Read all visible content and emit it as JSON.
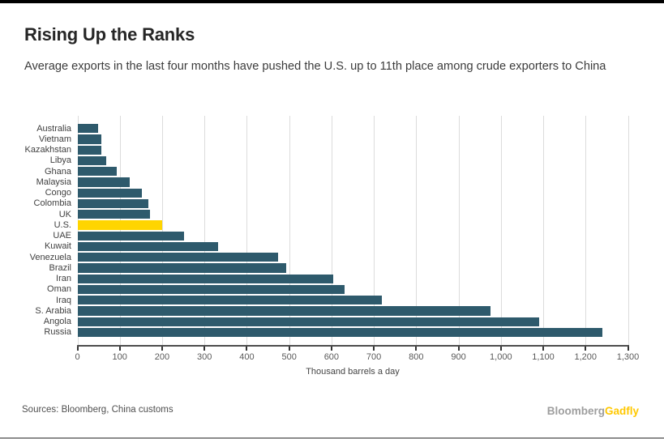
{
  "header": {
    "title": "Rising Up the Ranks",
    "subtitle": "Average exports in the last four months have pushed the U.S. up to 11th place among crude exporters to China"
  },
  "chart_data": {
    "type": "bar",
    "orientation": "horizontal",
    "title": "Rising Up the Ranks",
    "subtitle": "Average exports in the last four months have pushed the U.S. up to 11th place among crude exporters to China",
    "xlabel": "Thousand barrels a day",
    "ylabel": "",
    "xlim": [
      0,
      1300
    ],
    "x_ticks": [
      0,
      100,
      200,
      300,
      400,
      500,
      600,
      700,
      800,
      900,
      1000,
      1100,
      1200,
      1300
    ],
    "x_tick_labels": [
      "0",
      "100",
      "200",
      "300",
      "400",
      "500",
      "600",
      "700",
      "800",
      "900",
      "1,000",
      "1,100",
      "1,200",
      "1,300"
    ],
    "grid": "vertical-gridlines-on",
    "legend": "none",
    "categories": [
      "Australia",
      "Vietnam",
      "Kazakhstan",
      "Libya",
      "Ghana",
      "Malaysia",
      "Congo",
      "Colombia",
      "UK",
      "U.S.",
      "UAE",
      "Kuwait",
      "Venezuela",
      "Brazil",
      "Iran",
      "Oman",
      "Iraq",
      "S. Arabia",
      "Angola",
      "Russia"
    ],
    "values": [
      48,
      56,
      56,
      68,
      92,
      124,
      152,
      167,
      172,
      201,
      251,
      333,
      474,
      493,
      605,
      630,
      718,
      975,
      1090,
      1240
    ],
    "highlight_category": "U.S.",
    "unit": "thousand barrels a day"
  },
  "colors": {
    "bar": "#2e5a6c",
    "highlight_bar": "#ffd500",
    "gridline": "#dcdcdc",
    "axis_line": "#4d4d4d",
    "top_border": "#000000",
    "bottom_border": "#8c8c8c",
    "logo_accent": "#ffc800"
  },
  "footer": {
    "sources": "Sources: Bloomberg, China customs",
    "logo_primary": "Bloomberg",
    "logo_accent": "Gadfly"
  }
}
